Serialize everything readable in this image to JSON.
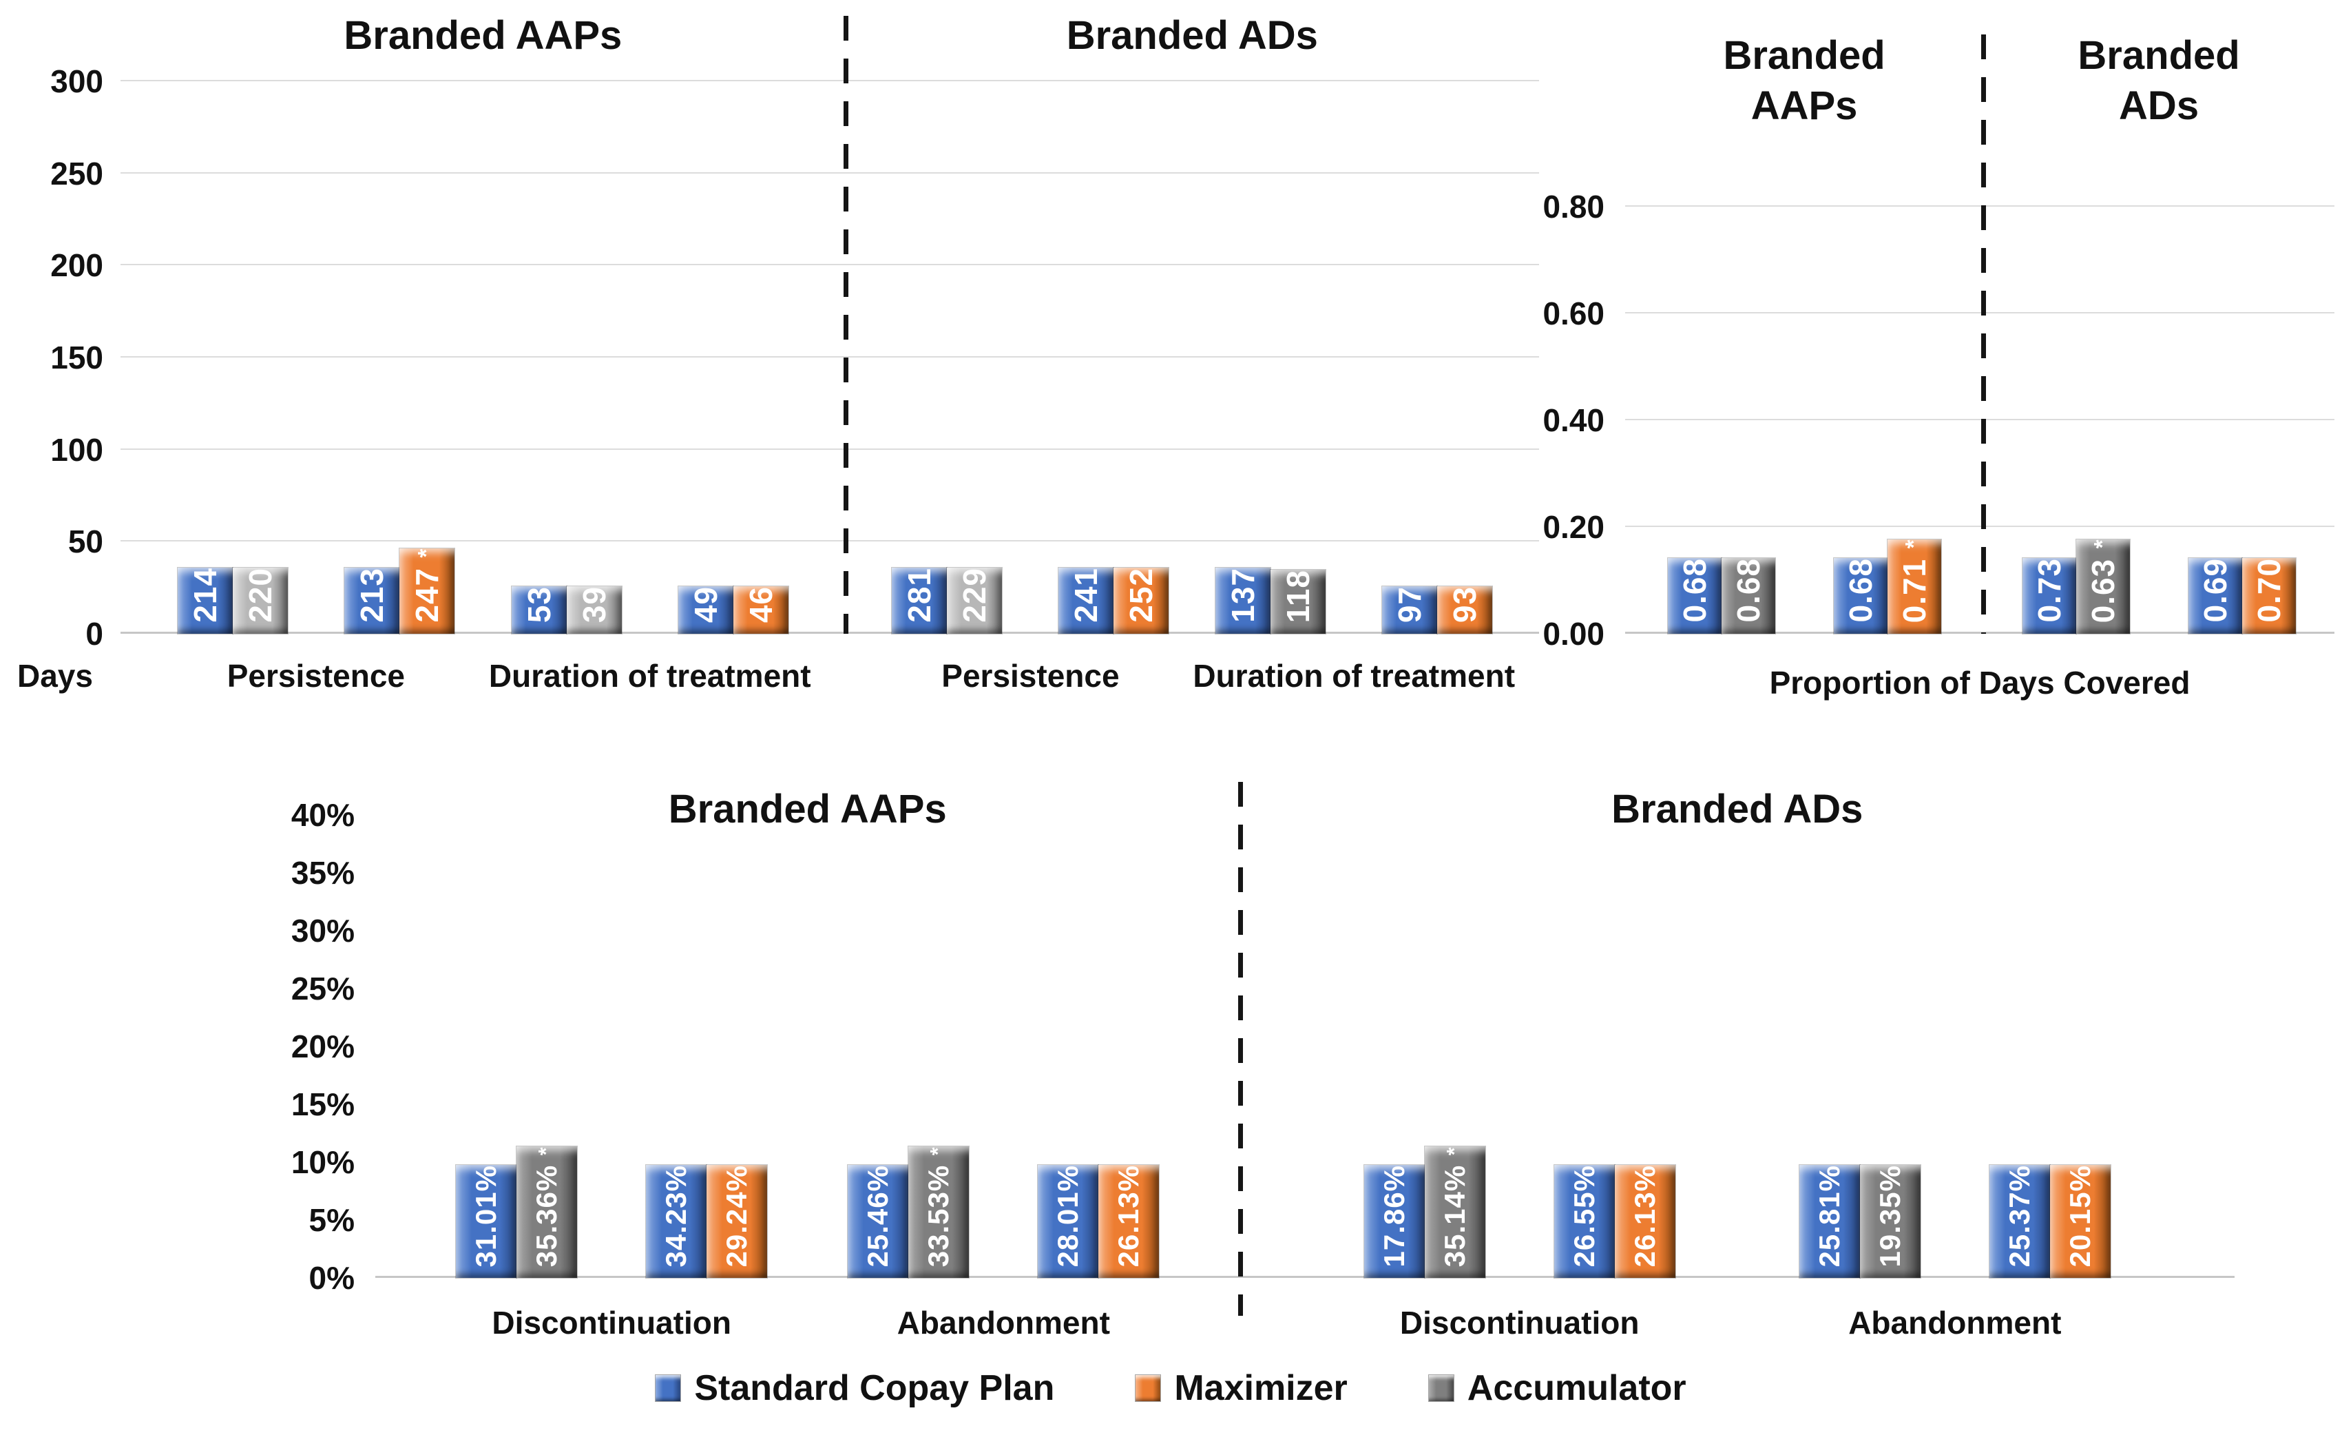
{
  "palette": {
    "blue": {
      "main": "#4472C4",
      "light": "#89A9E0",
      "dark": "#27457E"
    },
    "orange": {
      "main": "#ED7D31",
      "light": "#F7B183",
      "dark": "#8F4A13"
    },
    "gray": {
      "main": "#7F7F7F",
      "light": "#ACACAC",
      "dark": "#454545"
    },
    "gray_light": {
      "main": "#B7B7B7",
      "light": "#DDDDDD",
      "dark": "#6E6E6E"
    },
    "gridline": "#DCDCDC",
    "separator": "#151515",
    "text": "#111111",
    "value_text": "#FFFFFF",
    "background": "#FFFFFF"
  },
  "series_colors": {
    "Standard Copay Plan": "blue",
    "Maximizer": "orange",
    "Accumulator": "gray"
  },
  "legend": [
    {
      "label": "Standard Copay Plan",
      "color": "blue"
    },
    {
      "label": "Maximizer",
      "color": "orange"
    },
    {
      "label": "Accumulator",
      "color": "gray"
    }
  ],
  "chart_data": [
    {
      "id": "days",
      "type": "bar",
      "ylabel": "Days",
      "ylim": [
        0,
        300
      ],
      "grid": true,
      "yticks": [
        {
          "v": 300,
          "label": "300"
        },
        {
          "v": 250,
          "label": "250"
        },
        {
          "v": 200,
          "label": "200"
        },
        {
          "v": 150,
          "label": "150"
        },
        {
          "v": 100,
          "label": "100"
        },
        {
          "v": 50,
          "label": "50"
        },
        {
          "v": 0,
          "label": "0"
        }
      ],
      "halves": [
        {
          "title_lines": [
            "Branded AAPs"
          ],
          "categories": [
            {
              "label": "Persistence",
              "pairs": [
                [
                  {
                    "value": 214,
                    "label": "214",
                    "series": "Standard Copay Plan",
                    "star": false
                  },
                  {
                    "value": 220,
                    "label": "220",
                    "series": "Accumulator",
                    "color": "gray_light",
                    "star": false
                  }
                ],
                [
                  {
                    "value": 213,
                    "label": "213",
                    "series": "Standard Copay Plan",
                    "star": false
                  },
                  {
                    "value": 247,
                    "label": "247",
                    "series": "Maximizer",
                    "star": true
                  }
                ]
              ]
            },
            {
              "label": "Duration of treatment",
              "pairs": [
                [
                  {
                    "value": 53,
                    "label": "53",
                    "series": "Standard Copay Plan",
                    "star": false
                  },
                  {
                    "value": 39,
                    "label": "39",
                    "series": "Accumulator",
                    "color": "gray_light",
                    "star": false
                  }
                ],
                [
                  {
                    "value": 49,
                    "label": "49",
                    "series": "Standard Copay Plan",
                    "star": false
                  },
                  {
                    "value": 46,
                    "label": "46",
                    "series": "Maximizer",
                    "star": false
                  }
                ]
              ]
            }
          ]
        },
        {
          "title_lines": [
            "Branded ADs"
          ],
          "categories": [
            {
              "label": "Persistence",
              "pairs": [
                [
                  {
                    "value": 281,
                    "label": "281",
                    "series": "Standard Copay Plan",
                    "star": false
                  },
                  {
                    "value": 229,
                    "label": "229",
                    "series": "Accumulator",
                    "color": "gray_light",
                    "star": false
                  }
                ],
                [
                  {
                    "value": 241,
                    "label": "241",
                    "series": "Standard Copay Plan",
                    "star": false
                  },
                  {
                    "value": 252,
                    "label": "252",
                    "series": "Maximizer",
                    "star": false
                  }
                ]
              ]
            },
            {
              "label": "Duration of treatment",
              "pairs": [
                [
                  {
                    "value": 137,
                    "label": "137",
                    "series": "Standard Copay Plan",
                    "star": false
                  },
                  {
                    "value": 118,
                    "label": "118",
                    "series": "Accumulator",
                    "star": false
                  }
                ],
                [
                  {
                    "value": 97,
                    "label": "97",
                    "series": "Standard Copay Plan",
                    "star": false
                  },
                  {
                    "value": 93,
                    "label": "93",
                    "series": "Maximizer",
                    "star": false
                  }
                ]
              ]
            }
          ]
        }
      ]
    },
    {
      "id": "pdc",
      "type": "bar",
      "xlabel": "Proportion of Days Covered",
      "ylim": [
        0,
        0.8
      ],
      "grid": true,
      "yticks": [
        {
          "v": 0.8,
          "label": "0.80"
        },
        {
          "v": 0.6,
          "label": "0.60"
        },
        {
          "v": 0.4,
          "label": "0.40"
        },
        {
          "v": 0.2,
          "label": "0.20"
        },
        {
          "v": 0,
          "label": "0.00"
        }
      ],
      "halves": [
        {
          "title_lines": [
            "Branded",
            "AAPs"
          ],
          "categories": [
            {
              "label": "",
              "pairs": [
                [
                  {
                    "value": 0.68,
                    "label": "0.68",
                    "series": "Standard Copay Plan",
                    "star": false
                  },
                  {
                    "value": 0.68,
                    "label": "0.68",
                    "series": "Accumulator",
                    "star": false
                  }
                ],
                [
                  {
                    "value": 0.68,
                    "label": "0.68",
                    "series": "Standard Copay Plan",
                    "star": false
                  },
                  {
                    "value": 0.71,
                    "label": "0.71",
                    "series": "Maximizer",
                    "star": true
                  }
                ]
              ]
            }
          ]
        },
        {
          "title_lines": [
            "Branded",
            "ADs"
          ],
          "categories": [
            {
              "label": "",
              "pairs": [
                [
                  {
                    "value": 0.73,
                    "label": "0.73",
                    "series": "Standard Copay Plan",
                    "star": false
                  },
                  {
                    "value": 0.63,
                    "label": "0.63",
                    "series": "Accumulator",
                    "star": true
                  }
                ],
                [
                  {
                    "value": 0.69,
                    "label": "0.69",
                    "series": "Standard Copay Plan",
                    "star": false
                  },
                  {
                    "value": 0.7,
                    "label": "0.70",
                    "series": "Maximizer",
                    "star": false
                  }
                ]
              ]
            }
          ]
        }
      ]
    },
    {
      "id": "rates",
      "type": "bar",
      "ylim": [
        0,
        40
      ],
      "grid": false,
      "yticks": [
        {
          "v": 40,
          "label": "40%"
        },
        {
          "v": 35,
          "label": "35%"
        },
        {
          "v": 30,
          "label": "30%"
        },
        {
          "v": 25,
          "label": "25%"
        },
        {
          "v": 20,
          "label": "20%"
        },
        {
          "v": 15,
          "label": "15%"
        },
        {
          "v": 10,
          "label": "10%"
        },
        {
          "v": 5,
          "label": "5%"
        },
        {
          "v": 0,
          "label": "0%"
        }
      ],
      "halves": [
        {
          "title_lines": [
            "Branded AAPs"
          ],
          "categories": [
            {
              "label": "Discontinuation",
              "pairs": [
                [
                  {
                    "value": 31.01,
                    "label": "31.01%",
                    "series": "Standard Copay Plan",
                    "star": false
                  },
                  {
                    "value": 35.36,
                    "label": "35.36%",
                    "series": "Accumulator",
                    "star": true
                  }
                ],
                [
                  {
                    "value": 34.23,
                    "label": "34.23%",
                    "series": "Standard Copay Plan",
                    "star": false
                  },
                  {
                    "value": 29.24,
                    "label": "29.24%",
                    "series": "Maximizer",
                    "star": false
                  }
                ]
              ]
            },
            {
              "label": "Abandonment",
              "pairs": [
                [
                  {
                    "value": 25.46,
                    "label": "25.46%",
                    "series": "Standard Copay Plan",
                    "star": false
                  },
                  {
                    "value": 33.53,
                    "label": "33.53%",
                    "series": "Accumulator",
                    "star": true
                  }
                ],
                [
                  {
                    "value": 28.01,
                    "label": "28.01%",
                    "series": "Standard Copay Plan",
                    "star": false
                  },
                  {
                    "value": 26.13,
                    "label": "26.13%",
                    "series": "Maximizer",
                    "star": false
                  }
                ]
              ]
            }
          ]
        },
        {
          "title_lines": [
            "Branded ADs"
          ],
          "categories": [
            {
              "label": "Discontinuation",
              "pairs": [
                [
                  {
                    "value": 17.86,
                    "label": "17.86%",
                    "series": "Standard Copay Plan",
                    "star": false
                  },
                  {
                    "value": 35.14,
                    "label": "35.14%",
                    "series": "Accumulator",
                    "star": true
                  }
                ],
                [
                  {
                    "value": 26.55,
                    "label": "26.55%",
                    "series": "Standard Copay Plan",
                    "star": false
                  },
                  {
                    "value": 26.13,
                    "label": "26.13%",
                    "series": "Maximizer",
                    "star": false
                  }
                ]
              ]
            },
            {
              "label": "Abandonment",
              "pairs": [
                [
                  {
                    "value": 25.81,
                    "label": "25.81%",
                    "series": "Standard Copay Plan",
                    "star": false
                  },
                  {
                    "value": 19.35,
                    "label": "19.35%",
                    "series": "Accumulator",
                    "star": false
                  }
                ],
                [
                  {
                    "value": 25.37,
                    "label": "25.37%",
                    "series": "Standard Copay Plan",
                    "star": false
                  },
                  {
                    "value": 20.15,
                    "label": "20.15%",
                    "series": "Maximizer",
                    "star": false
                  }
                ]
              ]
            }
          ]
        }
      ]
    }
  ]
}
